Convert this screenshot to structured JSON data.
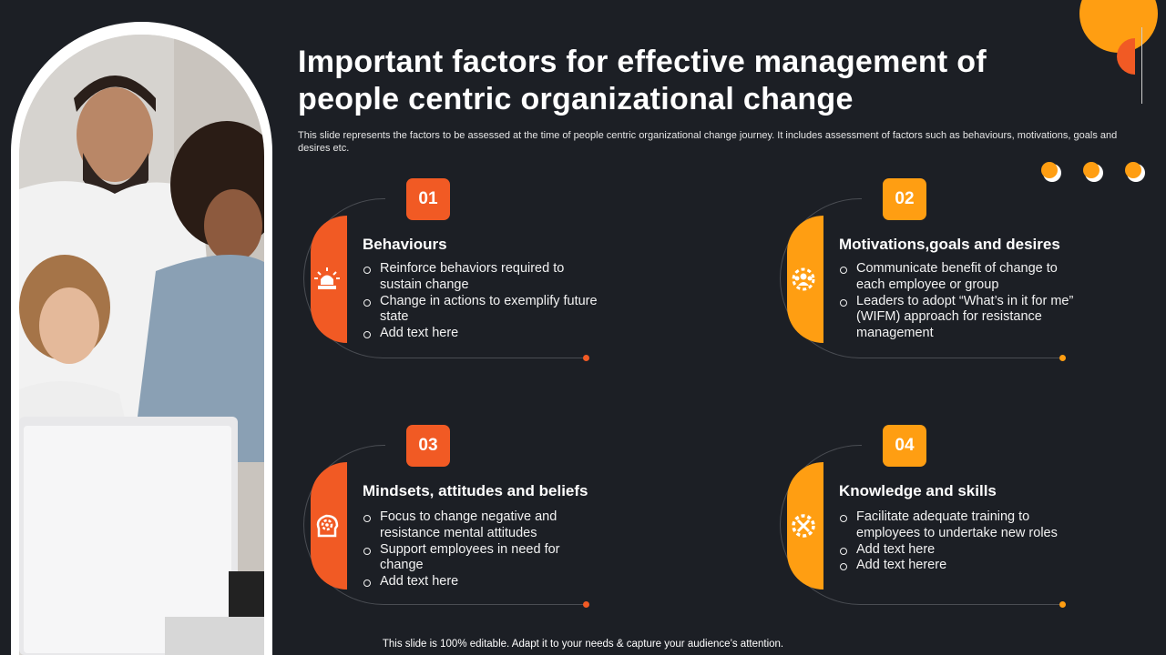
{
  "title": "Important factors for effective management of people centric organizational change",
  "subtitle": "This slide represents the factors to be assessed at the time of people centric organizational change journey. It includes assessment of factors such as behaviours, motivations, goals and desires etc.",
  "colors": {
    "background": "#1c1f25",
    "orange_red": "#f15a24",
    "orange_yellow": "#ff9e12"
  },
  "cards": [
    {
      "number": "01",
      "heading": "Behaviours",
      "icon": "alarm-light-icon",
      "accent": "#f15a24",
      "items": [
        "Reinforce behaviors required to sustain change",
        "Change in actions to exemplify future state",
        "Add text here"
      ]
    },
    {
      "number": "02",
      "heading": "Motivations,goals and desires",
      "icon": "team-gear-icon",
      "accent": "#ff9e12",
      "items": [
        "Communicate benefit of change to each employee or group",
        "Leaders to adopt “What’s in it for me” (WIFM) approach for resistance management"
      ]
    },
    {
      "number": "03",
      "heading": "Mindsets, attitudes and beliefs",
      "icon": "head-gear-icon",
      "accent": "#f15a24",
      "items": [
        "Focus to change negative and resistance mental attitudes",
        "Support employees in need for change",
        "Add text here"
      ]
    },
    {
      "number": "04",
      "heading": "Knowledge and skills",
      "icon": "tools-gear-icon",
      "accent": "#ff9e12",
      "items": [
        "Facilitate adequate training to employees to undertake new roles",
        "Add text here",
        "Add text herere"
      ]
    }
  ],
  "footer": "This slide is 100% editable. Adapt it to your needs & capture your audience’s attention."
}
